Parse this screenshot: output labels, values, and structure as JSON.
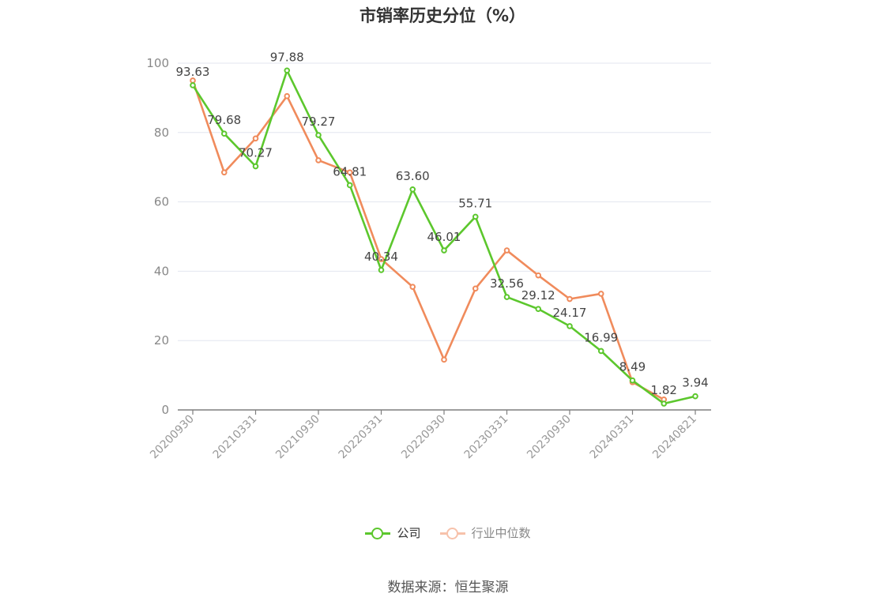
{
  "chart_data": {
    "type": "line",
    "title": "市销率历史分位（%）",
    "source": "数据来源：恒生聚源",
    "ylim": [
      0,
      100
    ],
    "yticks": [
      "0",
      "20",
      "40",
      "60",
      "80",
      "100"
    ],
    "x_tick_labels": [
      "20200930",
      "20210331",
      "20210930",
      "20220331",
      "20220930",
      "20230331",
      "20230930",
      "20240331",
      "20240821"
    ],
    "x": [
      "20200930",
      "20201231",
      "20210331",
      "20210630",
      "20210930",
      "20211231",
      "20220331",
      "20220630",
      "20220930",
      "20221231",
      "20230331",
      "20230630",
      "20230930",
      "20231231",
      "20240331",
      "20240630",
      "20240821"
    ],
    "series": [
      {
        "name": "公司",
        "color": "#5cc72d",
        "values": [
          93.63,
          79.68,
          70.27,
          97.88,
          79.27,
          64.81,
          40.34,
          63.6,
          46.01,
          55.71,
          32.56,
          29.12,
          24.17,
          16.99,
          8.49,
          1.82,
          3.94
        ],
        "labels": [
          "93.63",
          "79.68",
          "70.27",
          "97.88",
          "79.27",
          "64.81",
          "40.34",
          "63.60",
          "46.01",
          "55.71",
          "32.56",
          "29.12",
          "24.17",
          "16.99",
          "8.49",
          "1.82",
          "3.94"
        ]
      },
      {
        "name": "行业中位数",
        "color": "#f08b5c",
        "values": [
          95,
          68.5,
          78.3,
          90.5,
          72,
          68.5,
          43.5,
          35.5,
          14.5,
          35,
          46,
          38.8,
          32,
          33.5,
          8,
          3,
          null
        ]
      }
    ],
    "legend_position": "bottom-center",
    "grid": true
  }
}
